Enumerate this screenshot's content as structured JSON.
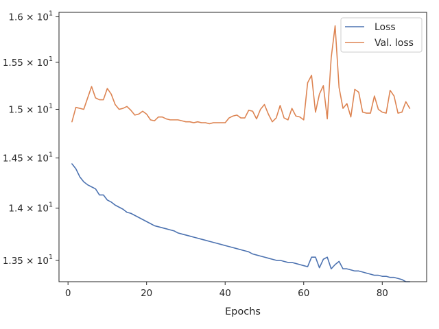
{
  "chart_data": {
    "type": "line",
    "title": "",
    "xlabel": "Epochs",
    "ylabel": "",
    "xlim": [
      -2.3,
      91.3
    ],
    "ylim": [
      13.3,
      16.05
    ],
    "xticks": [
      {
        "value": 0,
        "label": "0"
      },
      {
        "value": 20,
        "label": "20"
      },
      {
        "value": 40,
        "label": "40"
      },
      {
        "value": 60,
        "label": "60"
      },
      {
        "value": 80,
        "label": "80"
      }
    ],
    "yticks": [
      {
        "value": 13.5,
        "base": "1.35 × 10",
        "exp": "1"
      },
      {
        "value": 14.0,
        "base": "1.4 × 10",
        "exp": "1"
      },
      {
        "value": 14.5,
        "base": "1.45 × 10",
        "exp": "1"
      },
      {
        "value": 15.0,
        "base": "1.5 × 10",
        "exp": "1"
      },
      {
        "value": 15.5,
        "base": "1.55 × 10",
        "exp": "1"
      },
      {
        "value": 16.0,
        "base": "1.6 × 10",
        "exp": "1"
      }
    ],
    "y_scale": "log",
    "grid": false,
    "legend": "top-right",
    "x": [
      1,
      2,
      3,
      4,
      5,
      6,
      7,
      8,
      9,
      10,
      11,
      12,
      13,
      14,
      15,
      16,
      17,
      18,
      19,
      20,
      21,
      22,
      23,
      24,
      25,
      26,
      27,
      28,
      29,
      30,
      31,
      32,
      33,
      34,
      35,
      36,
      37,
      38,
      39,
      40,
      41,
      42,
      43,
      44,
      45,
      46,
      47,
      48,
      49,
      50,
      51,
      52,
      53,
      54,
      55,
      56,
      57,
      58,
      59,
      60,
      61,
      62,
      63,
      64,
      65,
      66,
      67,
      68,
      69,
      70,
      71,
      72,
      73,
      74,
      75,
      76,
      77,
      78,
      79,
      80,
      81,
      82,
      83,
      84,
      85,
      86,
      87
    ],
    "series": [
      {
        "name": "Loss",
        "color": "#4c72b0",
        "values": [
          14.44,
          14.39,
          14.31,
          14.26,
          14.23,
          14.21,
          14.19,
          14.13,
          14.13,
          14.08,
          14.06,
          14.03,
          14.01,
          13.99,
          13.96,
          13.95,
          13.93,
          13.91,
          13.89,
          13.87,
          13.85,
          13.83,
          13.82,
          13.81,
          13.8,
          13.79,
          13.78,
          13.76,
          13.75,
          13.74,
          13.73,
          13.72,
          13.71,
          13.7,
          13.69,
          13.68,
          13.67,
          13.66,
          13.65,
          13.64,
          13.63,
          13.62,
          13.61,
          13.6,
          13.59,
          13.58,
          13.56,
          13.55,
          13.54,
          13.53,
          13.52,
          13.51,
          13.5,
          13.5,
          13.49,
          13.48,
          13.48,
          13.47,
          13.46,
          13.45,
          13.44,
          13.53,
          13.53,
          13.43,
          13.51,
          13.53,
          13.42,
          13.46,
          13.49,
          13.42,
          13.42,
          13.41,
          13.4,
          13.4,
          13.39,
          13.38,
          13.37,
          13.36,
          13.36,
          13.35,
          13.35,
          13.34,
          13.34,
          13.33,
          13.32,
          13.3,
          13.3
        ]
      },
      {
        "name": "Val. loss",
        "color": "#dd8452",
        "values": [
          14.87,
          15.02,
          15.01,
          15.0,
          15.12,
          15.24,
          15.12,
          15.1,
          15.1,
          15.22,
          15.16,
          15.05,
          15.0,
          15.01,
          15.03,
          14.99,
          14.94,
          14.95,
          14.98,
          14.95,
          14.89,
          14.88,
          14.92,
          14.92,
          14.9,
          14.89,
          14.89,
          14.89,
          14.88,
          14.87,
          14.87,
          14.86,
          14.87,
          14.86,
          14.86,
          14.85,
          14.86,
          14.86,
          14.86,
          14.86,
          14.91,
          14.93,
          14.94,
          14.91,
          14.91,
          14.99,
          14.98,
          14.9,
          15.0,
          15.05,
          14.95,
          14.87,
          14.91,
          15.04,
          14.91,
          14.89,
          15.01,
          14.93,
          14.92,
          14.89,
          15.28,
          15.36,
          14.97,
          15.16,
          15.25,
          14.9,
          15.55,
          15.9,
          15.23,
          15.01,
          15.06,
          14.92,
          15.21,
          15.18,
          14.97,
          14.96,
          14.96,
          15.14,
          15.0,
          14.97,
          14.96,
          15.2,
          15.14,
          14.96,
          14.97,
          15.08,
          15.01
        ]
      }
    ]
  }
}
